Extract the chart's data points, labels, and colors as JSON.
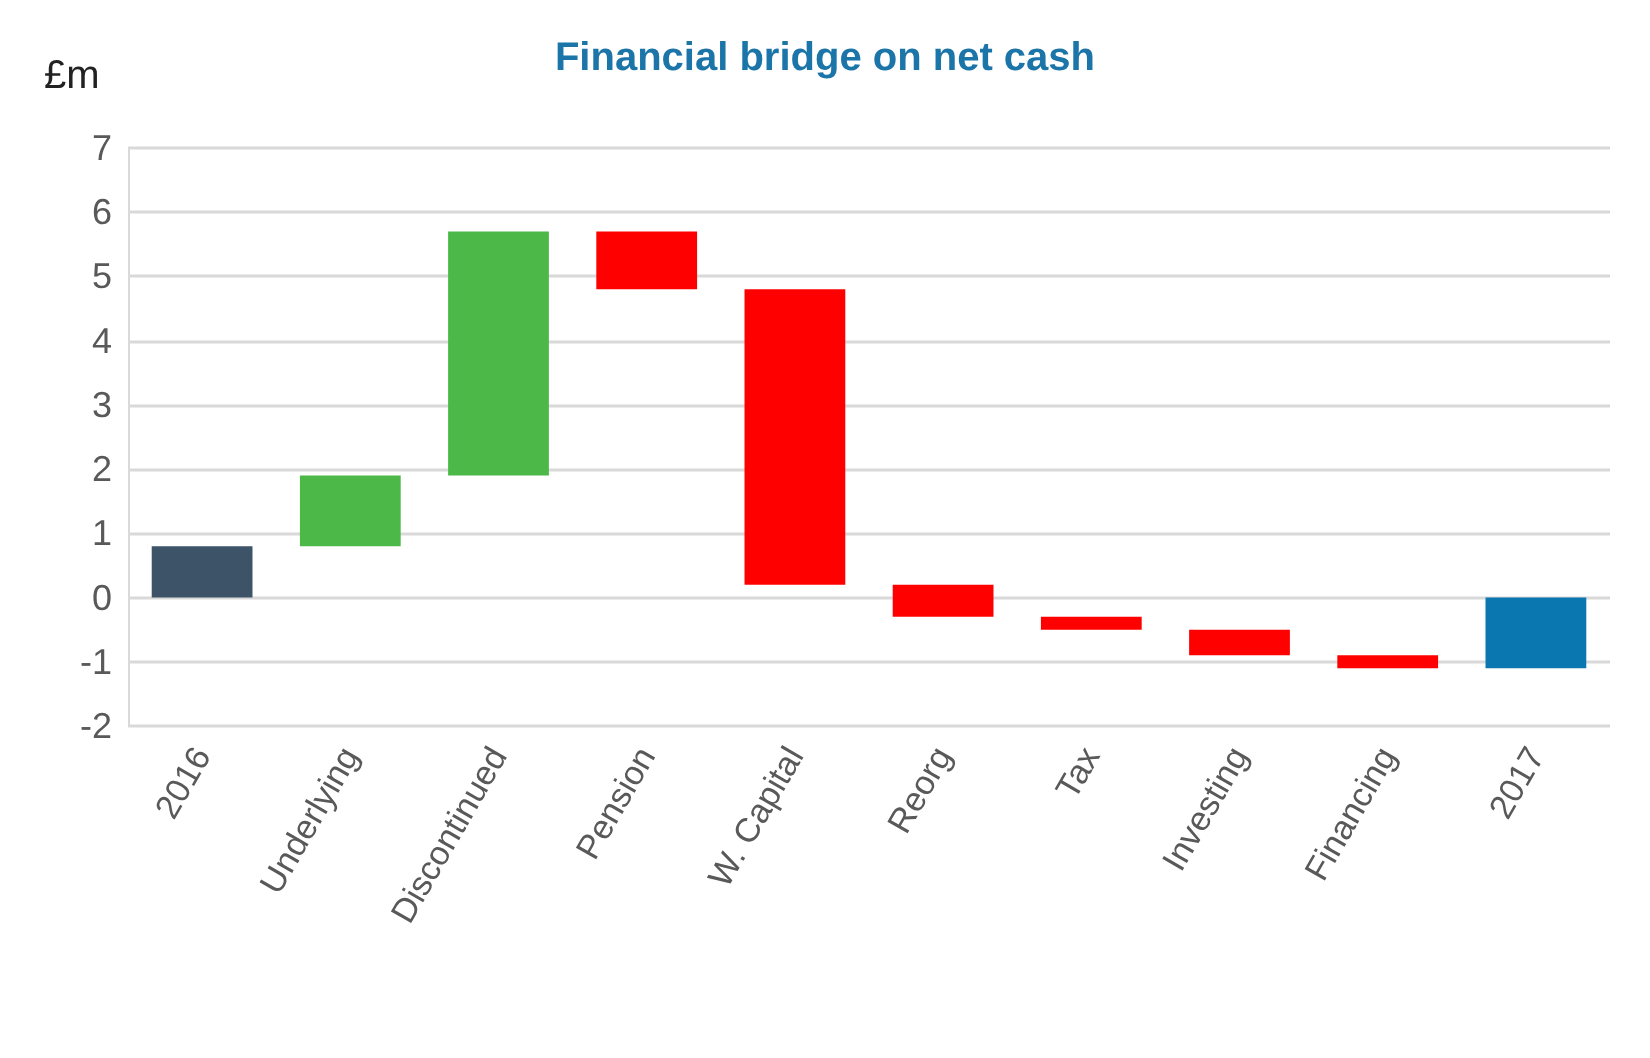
{
  "chart_data": {
    "type": "bar",
    "title": "Financial bridge on net cash",
    "ylabel": "£m",
    "categories": [
      "2016",
      "Underlying",
      "Discontinued",
      "Pension",
      "W. Capital",
      "Reorg",
      "Tax",
      "Investing",
      "Financing",
      "2017"
    ],
    "base": [
      0,
      0.8,
      1.9,
      5.7,
      4.8,
      0.2,
      -0.3,
      -0.5,
      -0.9,
      0
    ],
    "values": [
      0.8,
      1.1,
      3.8,
      -0.9,
      -4.6,
      -0.5,
      -0.2,
      -0.4,
      -0.2,
      -1.1
    ],
    "colors": [
      "#3d5468",
      "#4cb848",
      "#4cb848",
      "#ff0000",
      "#ff0000",
      "#ff0000",
      "#ff0000",
      "#ff0000",
      "#ff0000",
      "#0b77b0"
    ],
    "ylim": [
      -2,
      7
    ],
    "yticks": [
      -2,
      -1,
      0,
      1,
      2,
      3,
      4,
      5,
      6,
      7
    ],
    "grid": "y"
  }
}
